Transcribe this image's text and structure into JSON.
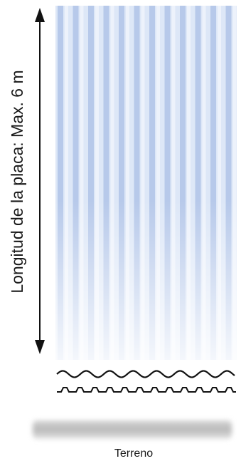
{
  "length_label": "Longitud de la placa: Max. 6 m",
  "ground_label": "Terreno",
  "colors": {
    "sheet_light": "#eef3fb",
    "sheet_blue": "#a9bfe6",
    "sheet_mid": "#c4d4f0",
    "arrow": "#111111",
    "profile": "#111111",
    "ground_shadow": "#9a9a9a"
  }
}
